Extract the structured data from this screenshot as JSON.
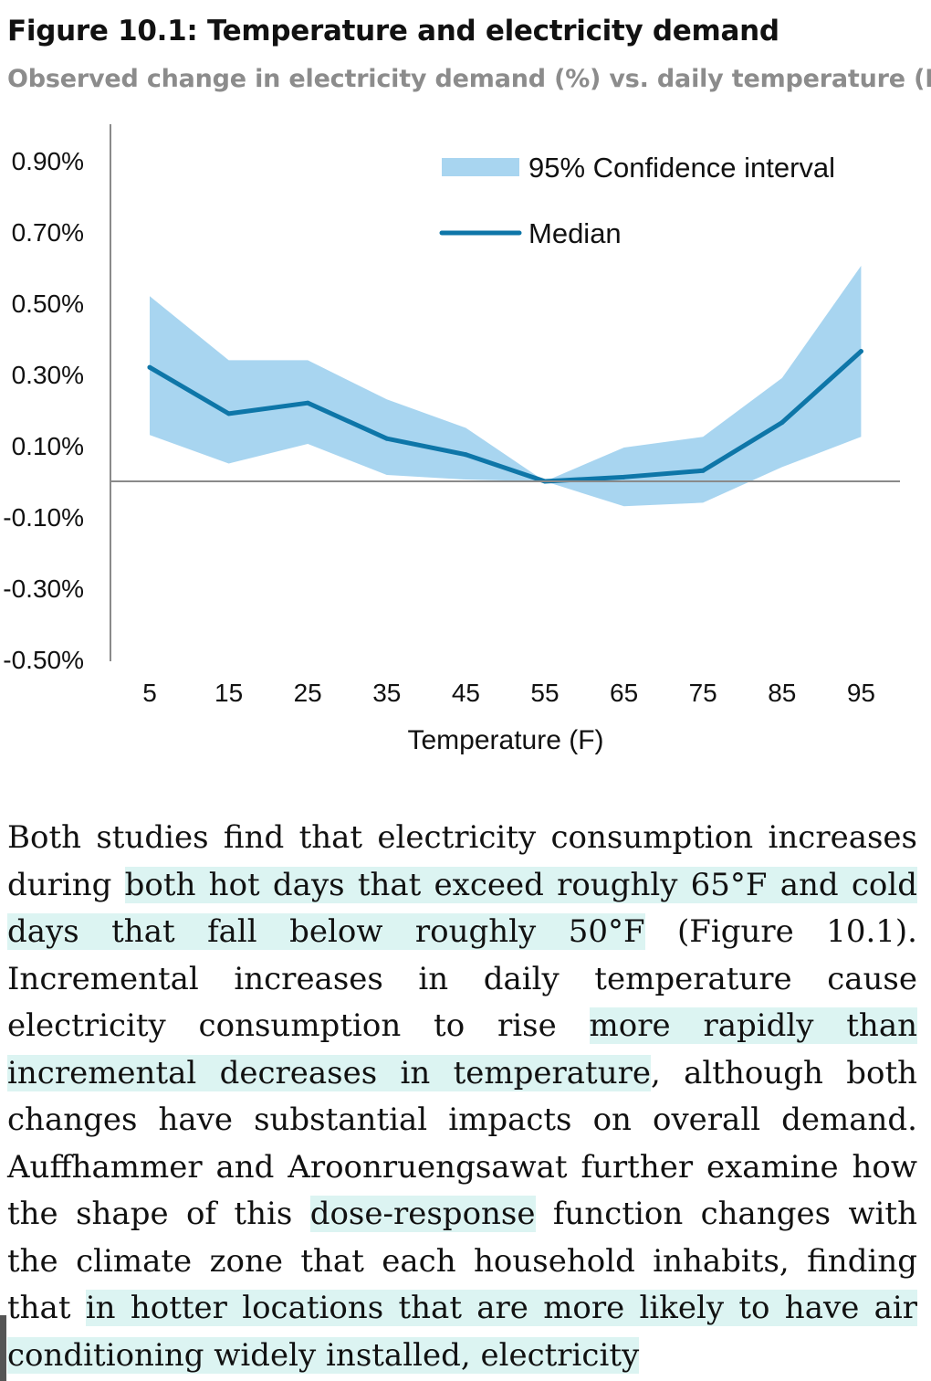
{
  "figure": {
    "title": "Figure 10.1: Temperature and electricity demand",
    "subtitle": "Observed change in electricity demand (%) vs. daily temperature (F)"
  },
  "chart_data": {
    "type": "line",
    "x": [
      5,
      15,
      25,
      35,
      45,
      55,
      65,
      75,
      85,
      95
    ],
    "xlabel": "Temperature (F)",
    "ylabel": "",
    "ylim": [
      -0.5,
      1.0
    ],
    "y_ticks": [
      "0.90%",
      "0.70%",
      "0.50%",
      "0.30%",
      "0.10%",
      "-0.10%",
      "-0.30%",
      "-0.50%"
    ],
    "y_tick_values": [
      0.9,
      0.7,
      0.5,
      0.3,
      0.1,
      -0.1,
      -0.3,
      -0.5
    ],
    "x_ticks": [
      "5",
      "15",
      "25",
      "35",
      "45",
      "55",
      "65",
      "75",
      "85",
      "95"
    ],
    "legend_position": "top-right",
    "grid": false,
    "series": [
      {
        "name": "Median",
        "kind": "line",
        "color": "#0e76a8",
        "values": [
          0.32,
          0.19,
          0.22,
          0.12,
          0.075,
          0.0,
          0.012,
          0.03,
          0.165,
          0.365
        ]
      },
      {
        "name": "95% Confidence interval",
        "kind": "band",
        "color": "#a8d5f0",
        "upper": [
          0.52,
          0.34,
          0.34,
          0.23,
          0.15,
          0.0,
          0.095,
          0.125,
          0.29,
          0.605
        ],
        "lower": [
          0.13,
          0.05,
          0.105,
          0.018,
          0.005,
          0.0,
          -0.07,
          -0.06,
          0.04,
          0.125
        ]
      }
    ]
  },
  "body": {
    "p1": "Both studies find that electricity consumption increases during ",
    "h1": "both hot days that exceed roughly 65°F and cold days that fall below roughly 50°F",
    "p2": " (Figure 10.1). Incremental increases in daily temperature cause electricity consumption to rise ",
    "h2": "more rapidly than incremental decreases in temperature",
    "p3": ", although both changes have substantial impacts on overall demand. Auffhammer and Aroonruengsawat further examine how the shape of this ",
    "h3": "dose-response",
    "p4": " function changes with the climate zone that each household inhabits, finding that ",
    "h4": "in hotter locations that are more likely to have air conditioning widely installed, electricity"
  }
}
